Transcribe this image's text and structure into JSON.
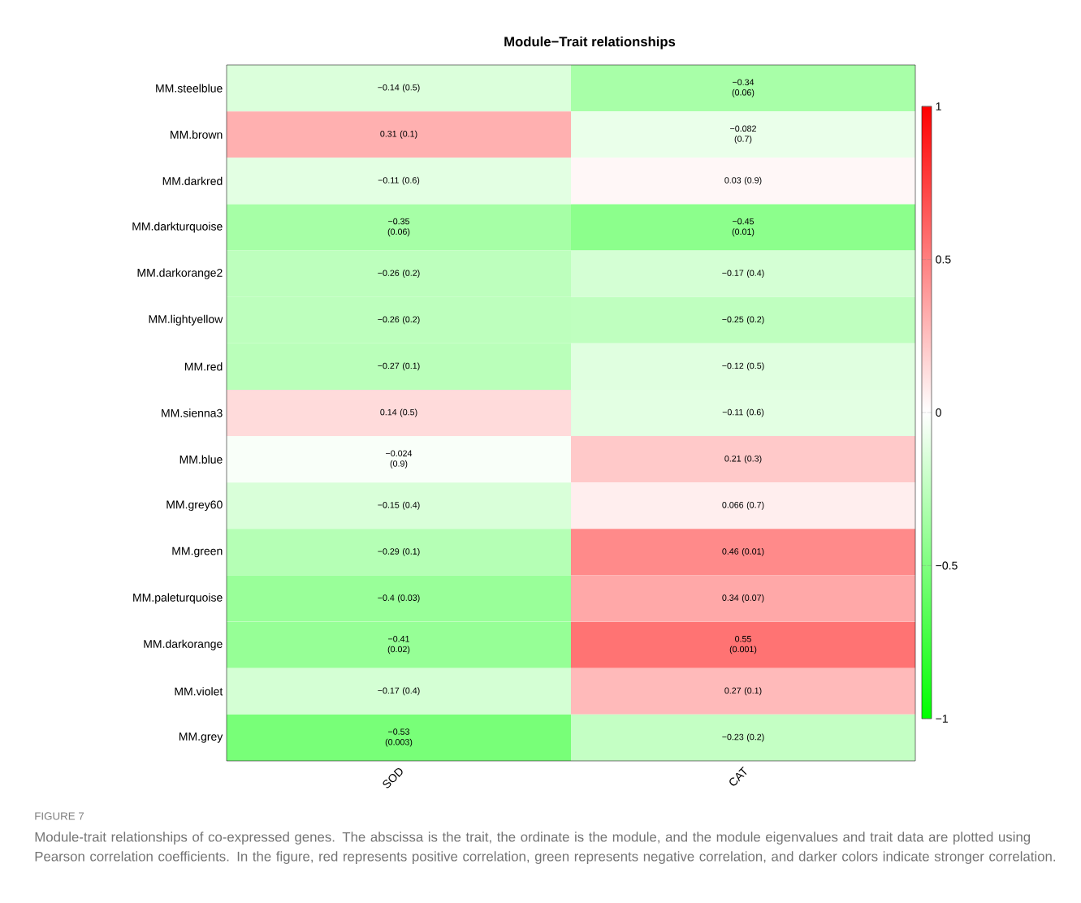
{
  "chart_data": {
    "type": "heatmap",
    "title": "Module−Trait relationships",
    "categories": [
      "SOD",
      "CAT"
    ],
    "y_categories": [
      "MM.steelblue",
      "MM.brown",
      "MM.darkred",
      "MM.darkturquoise",
      "MM.darkorange2",
      "MM.lightyellow",
      "MM.red",
      "MM.sienna3",
      "MM.blue",
      "MM.grey60",
      "MM.green",
      "MM.paleturquoise",
      "MM.darkorange",
      "MM.violet",
      "MM.grey"
    ],
    "cells": [
      [
        -0.14,
        -0.34
      ],
      [
        0.31,
        -0.082
      ],
      [
        -0.11,
        0.03
      ],
      [
        -0.35,
        -0.45
      ],
      [
        -0.26,
        -0.17
      ],
      [
        -0.26,
        -0.25
      ],
      [
        -0.27,
        -0.12
      ],
      [
        0.14,
        -0.11
      ],
      [
        -0.024,
        0.21
      ],
      [
        -0.15,
        0.066
      ],
      [
        -0.29,
        0.46
      ],
      [
        -0.4,
        0.34
      ],
      [
        -0.41,
        0.55
      ],
      [
        -0.17,
        0.27
      ],
      [
        -0.53,
        -0.23
      ]
    ],
    "cell_labels": [
      [
        "−0.14 (0.5)",
        "−0.34 (0.06)"
      ],
      [
        "0.31 (0.1)",
        "−0.082 (0.7)"
      ],
      [
        "−0.11 (0.6)",
        "0.03 (0.9)"
      ],
      [
        "−0.35 (0.06)",
        "−0.45 (0.01)"
      ],
      [
        "−0.26 (0.2)",
        "−0.17 (0.4)"
      ],
      [
        "−0.26 (0.2)",
        "−0.25 (0.2)"
      ],
      [
        "−0.27 (0.1)",
        "−0.12 (0.5)"
      ],
      [
        "0.14 (0.5)",
        "−0.11 (0.6)"
      ],
      [
        "−0.024 (0.9)",
        "0.21 (0.3)"
      ],
      [
        "−0.15 (0.4)",
        "0.066 (0.7)"
      ],
      [
        "−0.29 (0.1)",
        "0.46 (0.01)"
      ],
      [
        "−0.4 (0.03)",
        "0.34 (0.07)"
      ],
      [
        "−0.41 (0.02)",
        "0.55 (0.001)"
      ],
      [
        "−0.17 (0.4)",
        "0.27 (0.1)"
      ],
      [
        "−0.53 (0.003)",
        "−0.23 (0.2)"
      ]
    ],
    "clim": [
      -1,
      1
    ],
    "cticks": [
      {
        "value": -1,
        "label": "−1"
      },
      {
        "value": -0.5,
        "label": "−0.5"
      },
      0,
      0.5,
      1
    ],
    "annotations": [
      "FIGURE 7",
      "Module-trait relationships of co-expressed genes. The abscissa is the trait, the ordinate is the module, and the module eigenvalues and trait data are plotted using Pearson correlation coefficients. In the figure, red represents positive correlation, green represents negative correlation, and darker colors indicate stronger correlation."
    ]
  }
}
